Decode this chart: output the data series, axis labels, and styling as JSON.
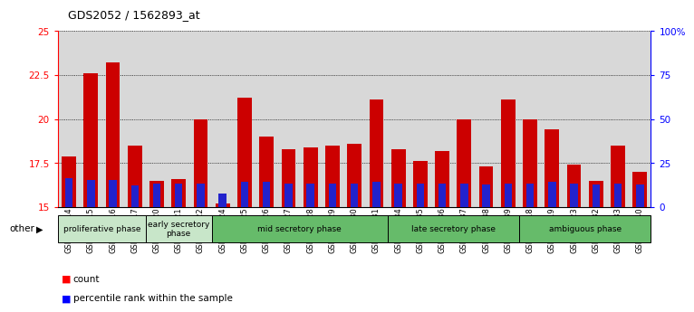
{
  "title": "GDS2052 / 1562893_at",
  "samples": [
    "GSM109814",
    "GSM109815",
    "GSM109816",
    "GSM109817",
    "GSM109820",
    "GSM109821",
    "GSM109822",
    "GSM109824",
    "GSM109825",
    "GSM109826",
    "GSM109827",
    "GSM109828",
    "GSM109829",
    "GSM109830",
    "GSM109831",
    "GSM109834",
    "GSM109835",
    "GSM109836",
    "GSM109837",
    "GSM109838",
    "GSM109839",
    "GSM109818",
    "GSM109819",
    "GSM109823",
    "GSM109832",
    "GSM109833",
    "GSM109840"
  ],
  "count_values": [
    17.9,
    22.6,
    23.2,
    18.5,
    16.5,
    16.6,
    20.0,
    15.2,
    21.2,
    19.0,
    18.3,
    18.4,
    18.5,
    18.6,
    21.1,
    18.3,
    17.6,
    18.2,
    20.0,
    17.3,
    21.1,
    20.0,
    19.4,
    17.4,
    16.5,
    18.5,
    17.0
  ],
  "percentile_top": [
    16.65,
    16.55,
    16.55,
    16.25,
    16.35,
    16.35,
    16.35,
    15.8,
    16.45,
    16.45,
    16.35,
    16.35,
    16.35,
    16.35,
    16.45,
    16.35,
    16.35,
    16.35,
    16.35,
    16.3,
    16.35,
    16.35,
    16.45,
    16.35,
    16.3,
    16.35,
    16.3
  ],
  "phase_borders": [
    {
      "start": 0,
      "end": 4,
      "color": "#c8e6c9",
      "label": "proliferative phase"
    },
    {
      "start": 4,
      "end": 7,
      "color": "#c8e6c9",
      "label": "early secretory\nphase"
    },
    {
      "start": 7,
      "end": 15,
      "color": "#66bb6a",
      "label": "mid secretory phase"
    },
    {
      "start": 15,
      "end": 21,
      "color": "#66bb6a",
      "label": "late secretory phase"
    },
    {
      "start": 21,
      "end": 27,
      "color": "#66bb6a",
      "label": "ambiguous phase"
    }
  ],
  "ylim_left": [
    15,
    25
  ],
  "ylim_right": [
    0,
    100
  ],
  "yticks_left": [
    15,
    17.5,
    20,
    22.5,
    25
  ],
  "yticks_right": [
    0,
    25,
    50,
    75,
    100
  ],
  "yticklabels_right": [
    "0",
    "25",
    "50",
    "75",
    "100%"
  ],
  "bar_color": "#cc0000",
  "bar_color2": "#2222cc",
  "bar_bottom": 15.0,
  "bar_width": 0.65,
  "blue_bar_width": 0.35,
  "bg_color": "#d8d8d8"
}
